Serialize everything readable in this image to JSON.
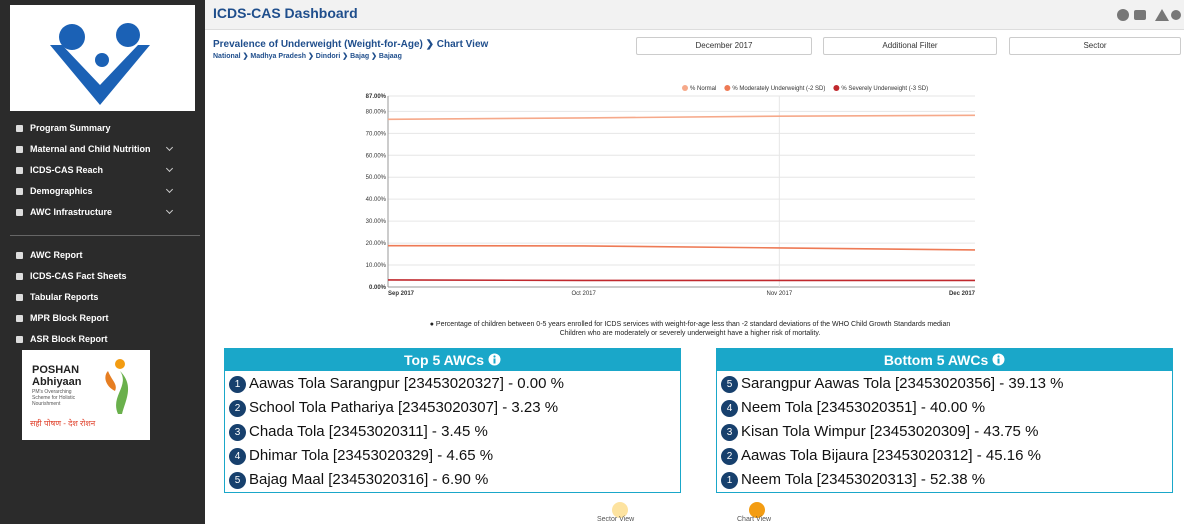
{
  "header": {
    "title": "ICDS-CAS Dashboard"
  },
  "sidebar": {
    "menu": [
      "Program Summary",
      "Maternal and Child Nutrition",
      "ICDS-CAS Reach",
      "Demographics",
      "AWC Infrastructure"
    ],
    "reports": [
      "AWC Report",
      "ICDS-CAS Fact Sheets",
      "Tabular Reports",
      "MPR Block Report",
      "ASR Block Report"
    ],
    "poshan": {
      "name": "POSHAN",
      "sub": "Abhiyaan",
      "tagline": "PM's Overarching Scheme for Holistic Nourishment",
      "slogan": "सही पोषण - देश रोशन"
    }
  },
  "page": {
    "title": "Prevalence of Underweight (Weight-for-Age)",
    "view": "Chart View",
    "breadcrumb": [
      "National",
      "Madhya Pradesh",
      "Dindori",
      "Bajag",
      "Bajaag"
    ],
    "filters": [
      "December 2017",
      "Additional Filter",
      "Sector"
    ],
    "note": "Percentage of children between 0-5 years enrolled for ICDS services with weight-for-age less than -2 standard deviations of the WHO Child Growth Standards median Children who are moderately or severely underweight have a higher risk of mortality.",
    "toggles": [
      "Sector View",
      "Chart View"
    ]
  },
  "chart_data": {
    "type": "line",
    "categories": [
      "Sep 2017",
      "Oct 2017",
      "Nov 2017",
      "Dec 2017"
    ],
    "series": [
      {
        "name": "% Normal",
        "color": "#f6a98a",
        "values": [
          76.4,
          77.0,
          77.8,
          78.2
        ]
      },
      {
        "name": "% Moderately Underweight (-2 SD)",
        "color": "#ee7a55",
        "values": [
          18.8,
          18.7,
          17.8,
          16.9
        ]
      },
      {
        "name": "% Severely Underweight (-3 SD)",
        "color": "#c0282d",
        "values": [
          3.2,
          3.0,
          3.0,
          3.0
        ]
      }
    ],
    "ylim": [
      0,
      87
    ],
    "yticks": [
      {
        "value": 0,
        "label": "0.00%"
      },
      {
        "value": 10,
        "label": "10.00%"
      },
      {
        "value": 20,
        "label": "20.00%"
      },
      {
        "value": 30,
        "label": "30.00%"
      },
      {
        "value": 40,
        "label": "40.00%"
      },
      {
        "value": 50,
        "label": "50.00%"
      },
      {
        "value": 60,
        "label": "60.00%"
      },
      {
        "value": 70,
        "label": "70.00%"
      },
      {
        "value": 80,
        "label": "80.00%"
      },
      {
        "value": 87,
        "label": "87.00%"
      }
    ],
    "grid": true,
    "legend": "top-right"
  },
  "top": {
    "title": "Top 5 AWCs",
    "items": [
      {
        "rank": 1,
        "text": "Aawas Tola Sarangpur [23453020327] - 0.00 %"
      },
      {
        "rank": 2,
        "text": "School Tola Pathariya [23453020307] - 3.23 %"
      },
      {
        "rank": 3,
        "text": "Chada Tola [23453020311] - 3.45 %"
      },
      {
        "rank": 4,
        "text": "Dhimar Tola [23453020329] - 4.65 %"
      },
      {
        "rank": 5,
        "text": "Bajag Maal [23453020316] - 6.90 %"
      }
    ]
  },
  "bottom": {
    "title": "Bottom 5 AWCs",
    "items": [
      {
        "rank": 5,
        "text": "Sarangpur Aawas Tola [23453020356] - 39.13 %"
      },
      {
        "rank": 4,
        "text": "Neem Tola [23453020351] - 40.00 %"
      },
      {
        "rank": 3,
        "text": "Kisan Tola Wimpur [23453020309] - 43.75 %"
      },
      {
        "rank": 2,
        "text": "Aawas Tola Bijaura [23453020312] - 45.16 %"
      },
      {
        "rank": 1,
        "text": "Neem Tola [23453020313] - 52.38 %"
      }
    ]
  }
}
